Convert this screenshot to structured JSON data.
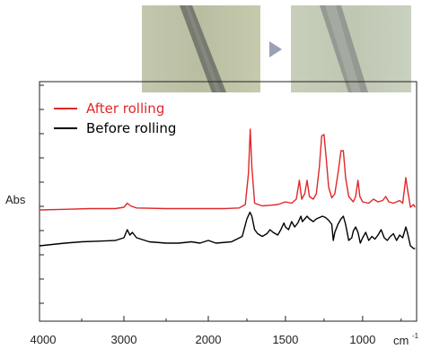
{
  "images": {
    "before_photo": "fiber-before-rolling-micrograph",
    "after_photo": "fiber-after-rolling-micrograph",
    "arrow_icon": "arrow-right-icon"
  },
  "chart_data": {
    "type": "line",
    "title": "",
    "xlabel": "cm",
    "xlabel_exp": "-1",
    "ylabel": "Abs",
    "xlim": [
      4000,
      650
    ],
    "ylim": [
      0,
      1.0
    ],
    "x_ticks": [
      4000,
      3000,
      2000,
      1500,
      1000
    ],
    "x_tick_labels": [
      "4000",
      "3000",
      "2000",
      "1500",
      "1000"
    ],
    "x_axis_scale": "piecewise (4000-2000 compressed, 2000-650 expanded)",
    "y_ticks_shown": false,
    "grid": false,
    "legend_position": "top-left",
    "series": [
      {
        "name": "After rolling",
        "color": "#e0282a",
        "points": [
          [
            4000,
            0.28
          ],
          [
            3700,
            0.285
          ],
          [
            3400,
            0.29
          ],
          [
            3100,
            0.29
          ],
          [
            3000,
            0.3
          ],
          [
            2960,
            0.33
          ],
          [
            2920,
            0.31
          ],
          [
            2850,
            0.295
          ],
          [
            2500,
            0.29
          ],
          [
            2350,
            0.29
          ],
          [
            2200,
            0.29
          ],
          [
            2000,
            0.29
          ],
          [
            1900,
            0.29
          ],
          [
            1800,
            0.295
          ],
          [
            1760,
            0.32
          ],
          [
            1740,
            0.55
          ],
          [
            1728,
            0.88
          ],
          [
            1718,
            0.6
          ],
          [
            1700,
            0.33
          ],
          [
            1650,
            0.31
          ],
          [
            1600,
            0.315
          ],
          [
            1550,
            0.32
          ],
          [
            1500,
            0.34
          ],
          [
            1460,
            0.33
          ],
          [
            1430,
            0.36
          ],
          [
            1410,
            0.5
          ],
          [
            1395,
            0.36
          ],
          [
            1375,
            0.4
          ],
          [
            1360,
            0.5
          ],
          [
            1345,
            0.38
          ],
          [
            1320,
            0.36
          ],
          [
            1300,
            0.4
          ],
          [
            1280,
            0.6
          ],
          [
            1265,
            0.83
          ],
          [
            1250,
            0.84
          ],
          [
            1235,
            0.65
          ],
          [
            1220,
            0.45
          ],
          [
            1200,
            0.37
          ],
          [
            1180,
            0.4
          ],
          [
            1160,
            0.55
          ],
          [
            1140,
            0.72
          ],
          [
            1125,
            0.72
          ],
          [
            1110,
            0.52
          ],
          [
            1090,
            0.38
          ],
          [
            1060,
            0.34
          ],
          [
            1045,
            0.38
          ],
          [
            1030,
            0.5
          ],
          [
            1018,
            0.38
          ],
          [
            1000,
            0.34
          ],
          [
            960,
            0.33
          ],
          [
            930,
            0.36
          ],
          [
            900,
            0.34
          ],
          [
            870,
            0.35
          ],
          [
            850,
            0.38
          ],
          [
            830,
            0.34
          ],
          [
            800,
            0.33
          ],
          [
            760,
            0.35
          ],
          [
            740,
            0.33
          ],
          [
            720,
            0.52
          ],
          [
            710,
            0.44
          ],
          [
            690,
            0.3
          ],
          [
            670,
            0.32
          ],
          [
            660,
            0.3
          ]
        ]
      },
      {
        "name": "Before rolling",
        "color": "#000000",
        "points": [
          [
            4000,
            0.08
          ],
          [
            3850,
            0.09
          ],
          [
            3700,
            0.1
          ],
          [
            3500,
            0.11
          ],
          [
            3300,
            0.115
          ],
          [
            3100,
            0.12
          ],
          [
            3000,
            0.14
          ],
          [
            2960,
            0.2
          ],
          [
            2930,
            0.16
          ],
          [
            2900,
            0.18
          ],
          [
            2850,
            0.14
          ],
          [
            2700,
            0.11
          ],
          [
            2500,
            0.1
          ],
          [
            2350,
            0.1
          ],
          [
            2200,
            0.11
          ],
          [
            2100,
            0.1
          ],
          [
            2000,
            0.12
          ],
          [
            1950,
            0.1
          ],
          [
            1850,
            0.11
          ],
          [
            1780,
            0.15
          ],
          [
            1750,
            0.28
          ],
          [
            1730,
            0.33
          ],
          [
            1718,
            0.3
          ],
          [
            1700,
            0.2
          ],
          [
            1680,
            0.17
          ],
          [
            1650,
            0.15
          ],
          [
            1620,
            0.17
          ],
          [
            1600,
            0.2
          ],
          [
            1580,
            0.18
          ],
          [
            1550,
            0.16
          ],
          [
            1530,
            0.2
          ],
          [
            1510,
            0.25
          ],
          [
            1500,
            0.22
          ],
          [
            1480,
            0.2
          ],
          [
            1460,
            0.26
          ],
          [
            1440,
            0.22
          ],
          [
            1420,
            0.25
          ],
          [
            1400,
            0.3
          ],
          [
            1390,
            0.26
          ],
          [
            1375,
            0.28
          ],
          [
            1360,
            0.3
          ],
          [
            1345,
            0.28
          ],
          [
            1320,
            0.26
          ],
          [
            1300,
            0.28
          ],
          [
            1280,
            0.29
          ],
          [
            1260,
            0.3
          ],
          [
            1240,
            0.29
          ],
          [
            1220,
            0.27
          ],
          [
            1200,
            0.24
          ],
          [
            1190,
            0.12
          ],
          [
            1180,
            0.18
          ],
          [
            1160,
            0.24
          ],
          [
            1140,
            0.28
          ],
          [
            1125,
            0.3
          ],
          [
            1110,
            0.24
          ],
          [
            1090,
            0.12
          ],
          [
            1070,
            0.14
          ],
          [
            1060,
            0.19
          ],
          [
            1045,
            0.22
          ],
          [
            1030,
            0.18
          ],
          [
            1015,
            0.1
          ],
          [
            1000,
            0.14
          ],
          [
            980,
            0.18
          ],
          [
            960,
            0.12
          ],
          [
            940,
            0.15
          ],
          [
            920,
            0.13
          ],
          [
            900,
            0.16
          ],
          [
            880,
            0.2
          ],
          [
            860,
            0.14
          ],
          [
            840,
            0.12
          ],
          [
            820,
            0.15
          ],
          [
            800,
            0.17
          ],
          [
            780,
            0.12
          ],
          [
            760,
            0.16
          ],
          [
            740,
            0.14
          ],
          [
            720,
            0.22
          ],
          [
            710,
            0.18
          ],
          [
            690,
            0.08
          ],
          [
            670,
            0.06
          ],
          [
            660,
            0.06
          ]
        ]
      }
    ]
  }
}
